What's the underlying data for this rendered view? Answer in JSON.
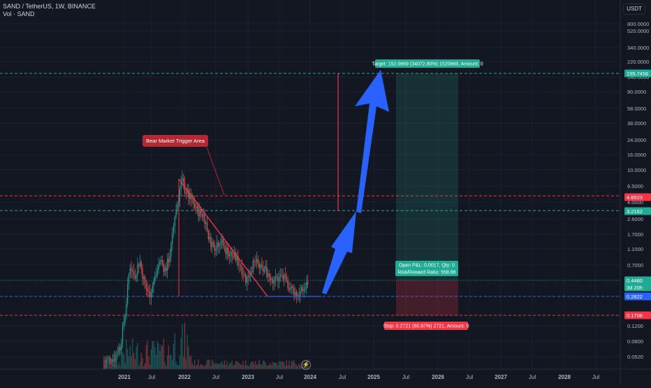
{
  "header": {
    "symbol_line": "SAND / TetherUS, 1W, BINANCE",
    "volume_line": "Vol · SAND",
    "currency_button": "USDT"
  },
  "colors": {
    "background": "#131722",
    "up": "#26a69a",
    "down": "#ef5350",
    "grid": "#1e222d",
    "arrow": "#2962ff",
    "dashed_red": "#f23645",
    "dashed_green": "#22ab94"
  },
  "chart_data": {
    "type": "candlestick",
    "y_scale": "log",
    "y_ticks": [
      "800.0000",
      "520.0000",
      "340.0000",
      "220.0000",
      "140.0000",
      "90.0000",
      "58.0000",
      "38.0000",
      "24.0000",
      "16.0000",
      "10.0000",
      "6.5000",
      "4.0000",
      "2.6000",
      "1.7000",
      "1.1000",
      "0.7000",
      "0.4480",
      "0.2822",
      "0.1706",
      "0.1200",
      "0.0800",
      "0.0520"
    ],
    "x_ticks": [
      "2021",
      "Jul",
      "2022",
      "Jul",
      "2023",
      "Jul",
      "2024",
      "Jul",
      "2025",
      "Jul",
      "2026",
      "Jul",
      "2027",
      "Jul",
      "2028",
      "Jul"
    ],
    "price_badges": [
      {
        "value": "155.7456",
        "color": "#22ab94"
      },
      {
        "value": "4.8923",
        "color": "#f23645"
      },
      {
        "value": "3.2162",
        "color": "#22ab94"
      },
      {
        "value": "0.4480",
        "color": "#22ab94"
      },
      {
        "value": "3d 20h",
        "color": "#22ab94"
      },
      {
        "value": "0.2822",
        "color": "#2962ff"
      },
      {
        "value": "0.1706",
        "color": "#f23645"
      }
    ],
    "horizontal_levels": [
      155.7456,
      4.8923,
      3.2162,
      0.2822,
      0.1706
    ],
    "last_price": 0.448,
    "annotations": {
      "bear_label": "Bear Market Trigger Area",
      "target_label": "Target: 152.0669 (34072.80%) 1520669, Amount: 0",
      "open_pl_label": "Open P&L: 0.0017, Qty: 0",
      "rr_label": "Risk/Reward Ratio: 558.86",
      "stop_label": "Stop: 0.2721 (60.97%) 2721, Amount: 0"
    },
    "long_position": {
      "entry": 0.448,
      "target": 152.0669,
      "stop": 0.1706
    },
    "price_path": [
      [
        2020.75,
        0.045
      ],
      [
        2020.9,
        0.05
      ],
      [
        2021.0,
        0.07
      ],
      [
        2021.08,
        0.18
      ],
      [
        2021.15,
        0.7
      ],
      [
        2021.22,
        0.5
      ],
      [
        2021.3,
        0.8
      ],
      [
        2021.38,
        0.4
      ],
      [
        2021.45,
        0.3
      ],
      [
        2021.55,
        0.5
      ],
      [
        2021.62,
        0.8
      ],
      [
        2021.7,
        0.6
      ],
      [
        2021.78,
        1.0
      ],
      [
        2021.85,
        3.0
      ],
      [
        2021.9,
        4.5
      ],
      [
        2021.95,
        7.6
      ],
      [
        2022.0,
        6.0
      ],
      [
        2022.06,
        4.8
      ],
      [
        2022.12,
        4.0
      ],
      [
        2022.2,
        3.2
      ],
      [
        2022.3,
        2.8
      ],
      [
        2022.38,
        1.4
      ],
      [
        2022.45,
        1.2
      ],
      [
        2022.55,
        1.4
      ],
      [
        2022.62,
        1.1
      ],
      [
        2022.7,
        0.95
      ],
      [
        2022.78,
        0.85
      ],
      [
        2022.86,
        0.7
      ],
      [
        2022.95,
        0.45
      ],
      [
        2023.03,
        0.65
      ],
      [
        2023.1,
        0.75
      ],
      [
        2023.18,
        0.6
      ],
      [
        2023.25,
        0.6
      ],
      [
        2023.33,
        0.5
      ],
      [
        2023.4,
        0.45
      ],
      [
        2023.5,
        0.5
      ],
      [
        2023.58,
        0.42
      ],
      [
        2023.66,
        0.35
      ],
      [
        2023.74,
        0.3
      ],
      [
        2023.8,
        0.32
      ],
      [
        2023.86,
        0.36
      ],
      [
        2023.92,
        0.45
      ]
    ]
  }
}
